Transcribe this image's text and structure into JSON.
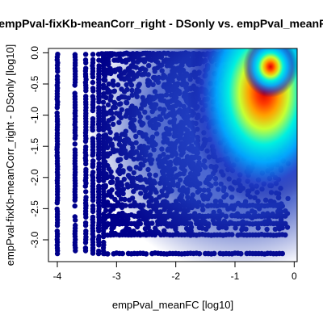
{
  "chart_data": {
    "type": "scatter",
    "title": "empPval-fixKb-meanCorr_right - DSonly vs. empPval_meanFC",
    "xlabel": "empPval_meanFC [log10]",
    "ylabel": "empPval-fixKb-meanCorr_right - DSonly [log10]",
    "xlim": [
      -4.15,
      0.05
    ],
    "ylim": [
      -3.35,
      0.07
    ],
    "x_ticks": [
      -4,
      -3,
      -2,
      -1,
      0
    ],
    "x_tick_labels": [
      "-4",
      "-3",
      "-2",
      "-1",
      "0"
    ],
    "y_ticks": [
      0.0,
      -0.5,
      -1.0,
      -1.5,
      -2.0,
      -2.5,
      -3.0
    ],
    "y_tick_labels": [
      "0.0",
      "-0.5",
      "-1.0",
      "-1.5",
      "-2.0",
      "-2.5",
      "-3.0"
    ],
    "grid": false,
    "legend": "none",
    "color_scale": [
      "#00008b",
      "#1e3cc8",
      "#00a8ff",
      "#00f0e0",
      "#c8ff32",
      "#ffa000",
      "#ff3c00",
      "#dc0000"
    ],
    "density_peak": {
      "x": -0.4,
      "y": -0.12
    },
    "point_color": "#00008b",
    "discrete_x_columns": [
      -4.0,
      -3.7,
      -3.52,
      -3.4,
      -3.3,
      -3.22
    ],
    "discrete_y_rows": [
      -3.22,
      -2.92,
      -2.62,
      -2.74,
      -2.45
    ],
    "note_data": []
  }
}
